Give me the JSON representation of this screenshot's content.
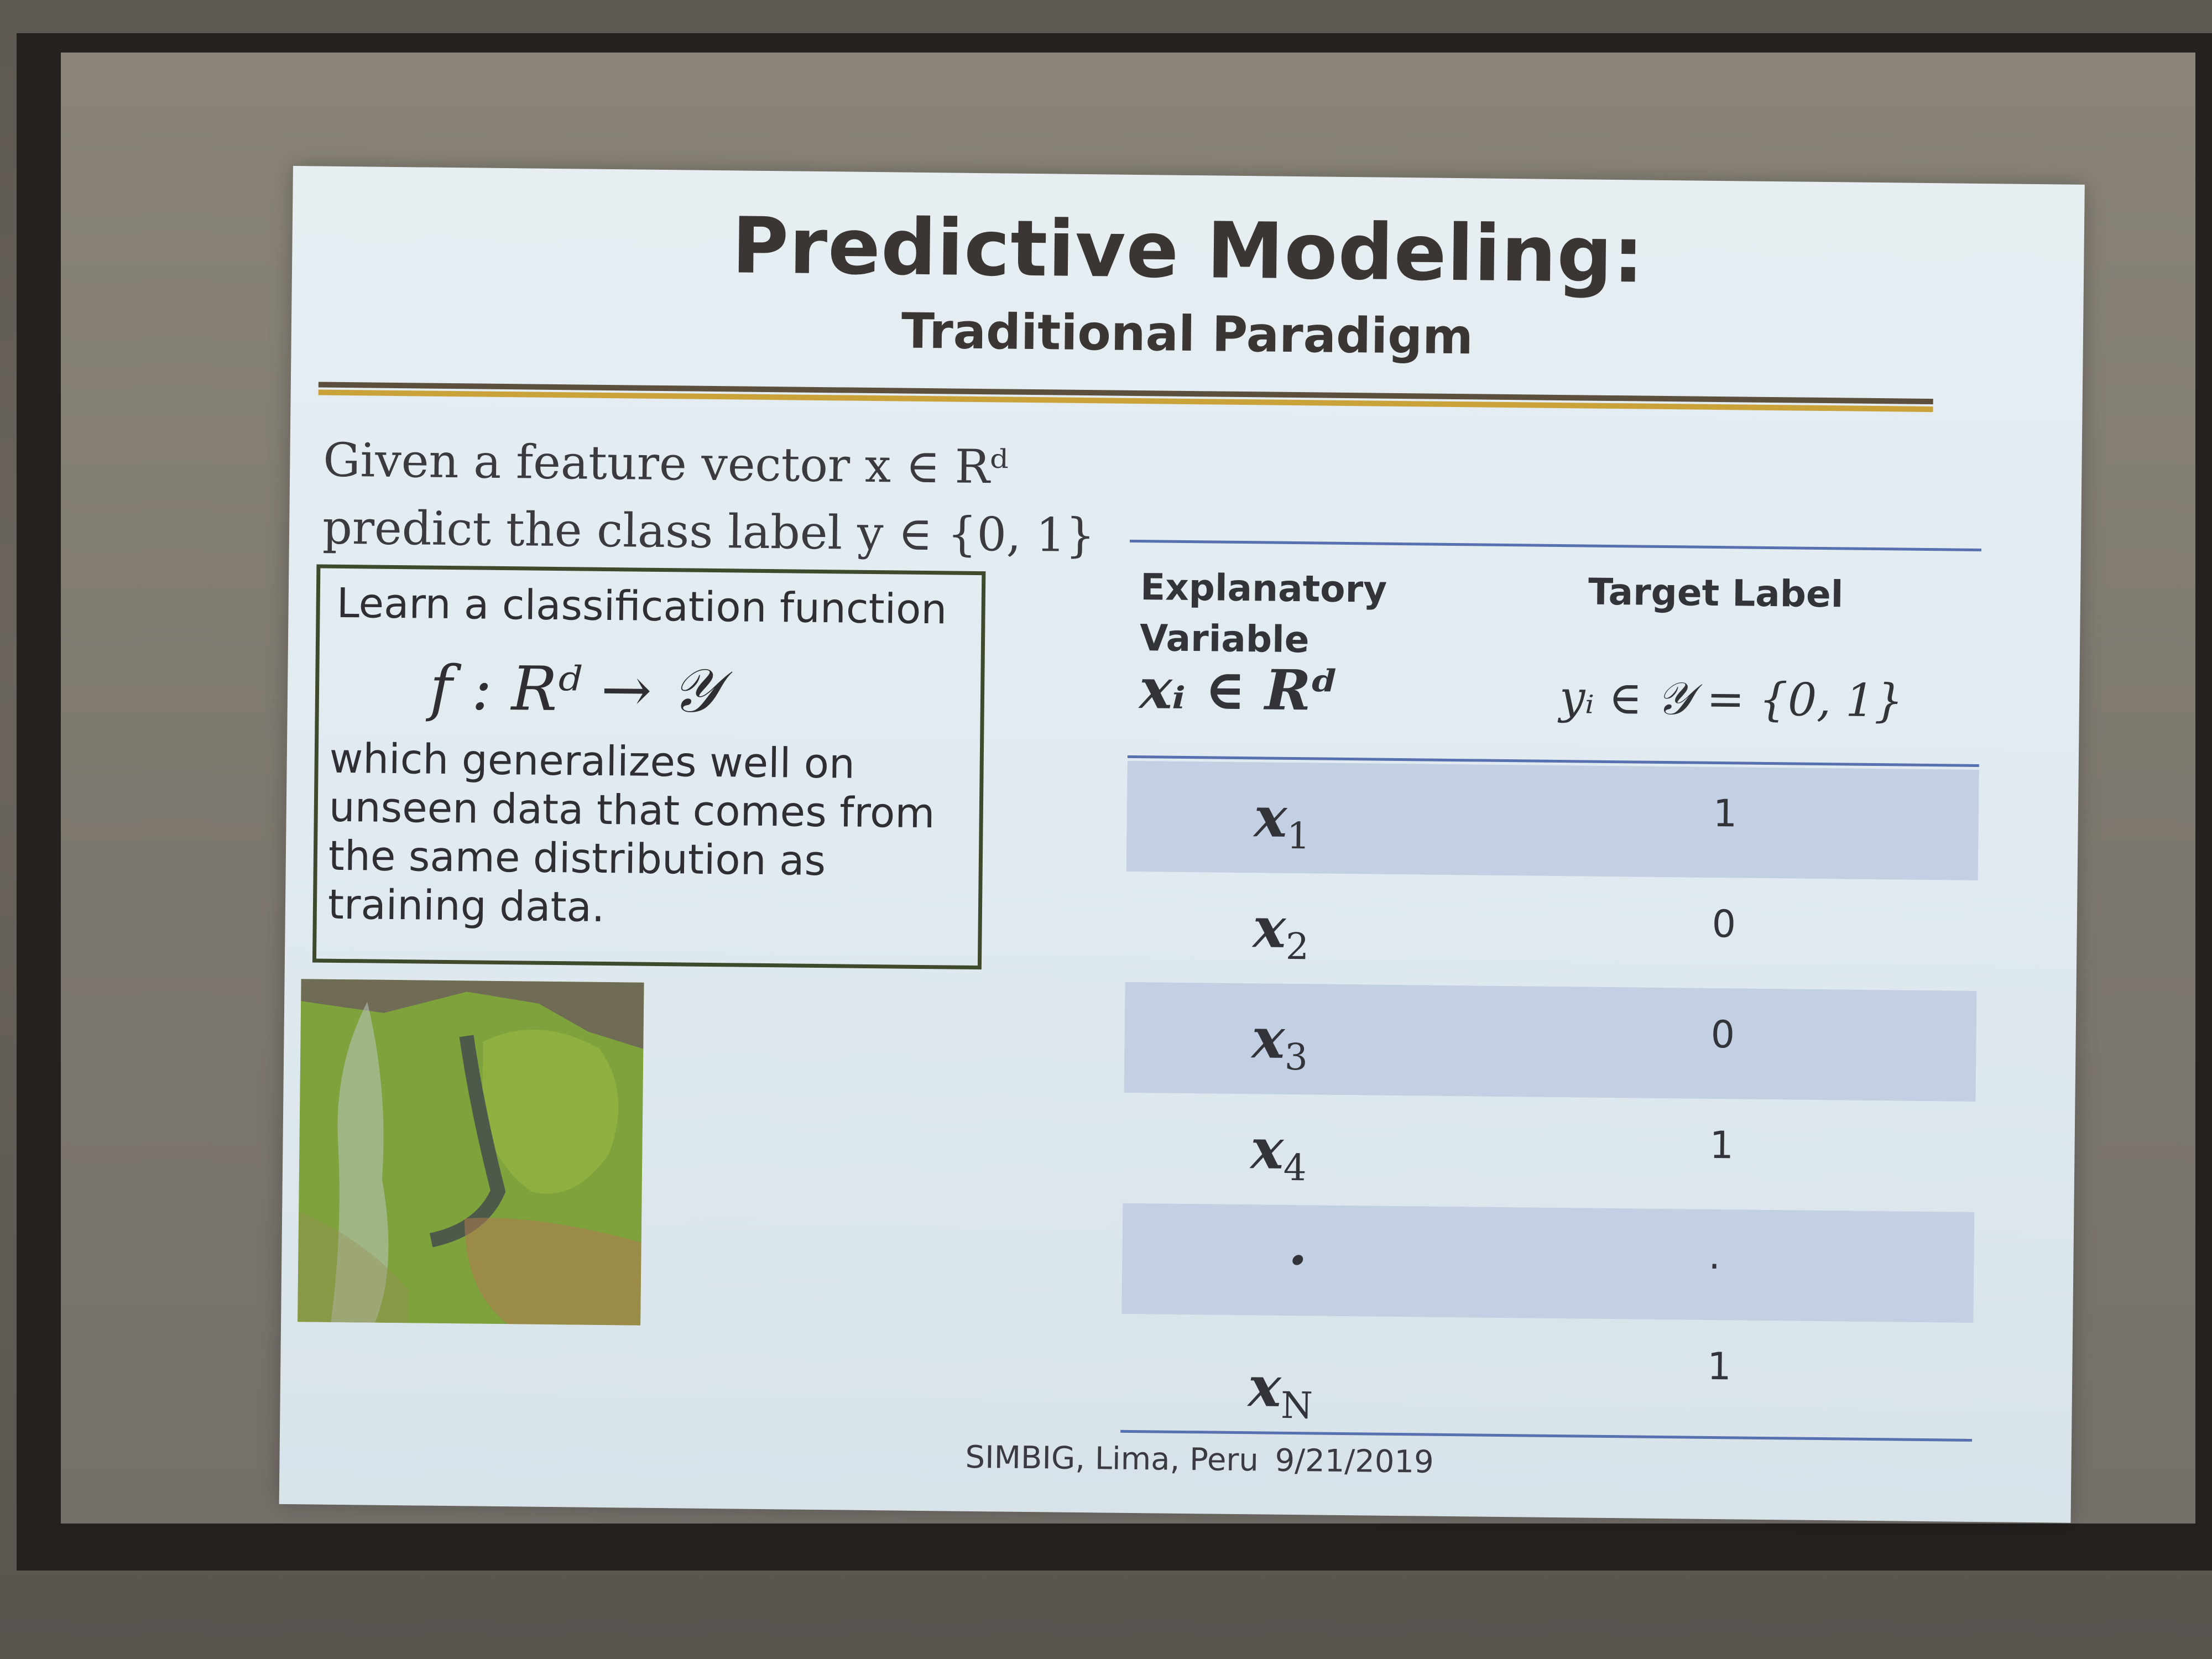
{
  "slide": {
    "title": "Predictive Modeling:",
    "subtitle": "Traditional Paradigm",
    "intro_line1": "Given a feature vector x ∈ Rᵈ",
    "intro_line2": "predict the class label y ∈ {0, 1}",
    "box_heading": "Learn a classification function",
    "box_formula": "f : Rᵈ → 𝒴",
    "box_text": "which generalizes well on unseen data that comes from the same distribution as training data.",
    "footer_venue": "SIMBIG, Lima, Peru",
    "footer_date": "9/21/2019"
  },
  "table": {
    "col1_header_line1": "Explanatory",
    "col1_header_line2": "Variable",
    "col2_header": "Target Label",
    "col1_math": "xᵢ ∈ Rᵈ",
    "col2_math": "yᵢ ∈ 𝒴 = {0, 1}",
    "rows": [
      {
        "x": "x",
        "sub": "1",
        "y": "1"
      },
      {
        "x": "x",
        "sub": "2",
        "y": "0"
      },
      {
        "x": "x",
        "sub": "3",
        "y": "0"
      },
      {
        "x": "x",
        "sub": "4",
        "y": "1"
      },
      {
        "x": "·",
        "sub": "",
        "y": "."
      },
      {
        "x": "x",
        "sub": "N",
        "y": "1"
      }
    ]
  },
  "colors": {
    "slide_bg": "#e3ecf1",
    "row_shade": "#c3cfe2",
    "rule_dark": "#5c4f3d",
    "rule_gold": "#c9a23a",
    "table_rule": "#5670b0"
  }
}
